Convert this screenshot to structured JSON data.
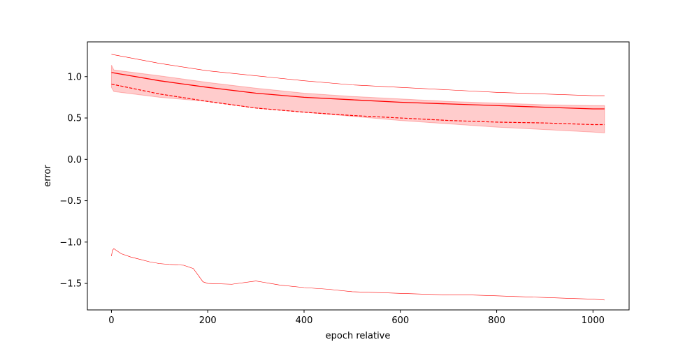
{
  "chart_data": {
    "type": "line",
    "title": "",
    "xlabel": "epoch relative",
    "ylabel": "error",
    "xlim": [
      -50,
      1075
    ],
    "ylim": [
      -1.82,
      1.42
    ],
    "grid": false,
    "legend": "none",
    "xticks": [
      0,
      200,
      400,
      600,
      800,
      1000
    ],
    "xtick_labels": [
      "0",
      "200",
      "400",
      "600",
      "800",
      "1000"
    ],
    "yticks": [
      -1.5,
      -1.0,
      -0.5,
      0.0,
      0.5,
      1.0
    ],
    "ytick_labels": [
      "−1.5",
      "−1.0",
      "−0.5",
      "0.0",
      "0.5",
      "1.0"
    ],
    "color": "#ff0000",
    "band": {
      "x": [
        0,
        5,
        100,
        200,
        300,
        400,
        500,
        600,
        700,
        800,
        900,
        1000,
        1024
      ],
      "lower": [
        0.87,
        0.82,
        0.75,
        0.7,
        0.62,
        0.57,
        0.52,
        0.47,
        0.43,
        0.39,
        0.36,
        0.33,
        0.32
      ],
      "upper": [
        1.14,
        1.08,
        1.01,
        0.93,
        0.86,
        0.8,
        0.76,
        0.73,
        0.7,
        0.68,
        0.66,
        0.65,
        0.65
      ]
    },
    "series": [
      {
        "style": "solid",
        "x": [
          0,
          50,
          100,
          200,
          300,
          400,
          500,
          600,
          700,
          800,
          900,
          1000,
          1024
        ],
        "values": [
          1.05,
          1.0,
          0.95,
          0.87,
          0.8,
          0.75,
          0.72,
          0.69,
          0.67,
          0.65,
          0.63,
          0.61,
          0.61
        ]
      },
      {
        "style": "dashed",
        "x": [
          0,
          50,
          100,
          200,
          300,
          400,
          500,
          600,
          700,
          800,
          900,
          1000,
          1024
        ],
        "values": [
          0.91,
          0.85,
          0.79,
          0.7,
          0.62,
          0.57,
          0.53,
          0.5,
          0.47,
          0.45,
          0.44,
          0.42,
          0.42
        ]
      },
      {
        "style": "thin",
        "x": [
          0,
          100,
          200,
          300,
          400,
          500,
          600,
          700,
          800,
          900,
          1000,
          1024
        ],
        "values": [
          1.27,
          1.16,
          1.07,
          1.01,
          0.95,
          0.9,
          0.87,
          0.84,
          0.81,
          0.79,
          0.77,
          0.77
        ]
      },
      {
        "style": "thin",
        "x": [
          0,
          2,
          5,
          20,
          40,
          60,
          80,
          100,
          120,
          150,
          170,
          180,
          190,
          200,
          250,
          300,
          330,
          350,
          400,
          450,
          500,
          550,
          600,
          650,
          700,
          750,
          800,
          850,
          900,
          950,
          1000,
          1024
        ],
        "values": [
          -1.17,
          -1.1,
          -1.08,
          -1.14,
          -1.18,
          -1.21,
          -1.24,
          -1.26,
          -1.27,
          -1.28,
          -1.32,
          -1.4,
          -1.48,
          -1.5,
          -1.51,
          -1.47,
          -1.5,
          -1.52,
          -1.55,
          -1.57,
          -1.6,
          -1.61,
          -1.62,
          -1.63,
          -1.64,
          -1.64,
          -1.65,
          -1.66,
          -1.67,
          -1.68,
          -1.69,
          -1.7
        ]
      }
    ]
  }
}
